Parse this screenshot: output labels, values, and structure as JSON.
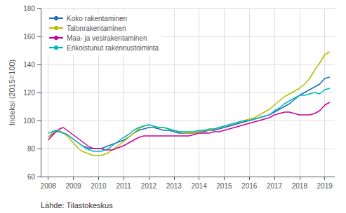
{
  "chart_data": {
    "type": "line",
    "ylabel": "Indeksi (2015=100)",
    "source": "Lähde: Tilastokeskus",
    "xlim": [
      2007.7,
      2019.4
    ],
    "xticks": [
      2008,
      2009,
      2010,
      2011,
      2012,
      2013,
      2014,
      2015,
      2016,
      2017,
      2018,
      2019
    ],
    "ylim": [
      60,
      180
    ],
    "yticks": [
      60,
      80,
      100,
      120,
      140,
      160,
      180
    ],
    "grid": true,
    "legend": "top-left",
    "x": [
      2008.0,
      2008.15,
      2008.3,
      2008.45,
      2008.6,
      2008.75,
      2008.9,
      2009.05,
      2009.2,
      2009.35,
      2009.5,
      2009.65,
      2009.8,
      2009.95,
      2010.1,
      2010.25,
      2010.4,
      2010.55,
      2010.7,
      2010.85,
      2011.0,
      2011.2,
      2011.4,
      2011.6,
      2011.8,
      2012.0,
      2012.2,
      2012.4,
      2012.6,
      2012.8,
      2013.0,
      2013.2,
      2013.4,
      2013.6,
      2013.8,
      2014.0,
      2014.2,
      2014.4,
      2014.6,
      2014.8,
      2015.0,
      2015.2,
      2015.4,
      2015.6,
      2015.8,
      2016.0,
      2016.2,
      2016.4,
      2016.6,
      2016.8,
      2017.0,
      2017.2,
      2017.4,
      2017.6,
      2017.8,
      2018.0,
      2018.2,
      2018.4,
      2018.6,
      2018.8,
      2019.0,
      2019.2
    ],
    "series": [
      {
        "name": "Koko rakentaminen",
        "color": "#1f6eb5",
        "values": [
          88,
          90,
          92,
          92,
          91,
          90,
          88,
          86,
          84,
          82,
          81,
          80,
          80,
          80,
          80,
          81,
          82,
          83,
          84,
          85,
          86,
          88,
          91,
          93,
          94,
          95,
          95,
          94,
          93,
          93,
          92,
          91,
          91,
          91,
          91,
          92,
          92,
          93,
          93,
          94,
          95,
          96,
          97,
          98,
          99,
          100,
          101,
          102,
          103,
          104,
          106,
          108,
          110,
          112,
          115,
          118,
          120,
          122,
          124,
          126,
          130,
          131
        ]
      },
      {
        "name": "Talonrakentaminen",
        "color": "#b5bd00",
        "values": [
          88,
          91,
          93,
          93,
          91,
          89,
          86,
          83,
          80,
          78,
          77,
          76,
          75,
          75,
          75,
          76,
          77,
          79,
          81,
          83,
          85,
          88,
          91,
          94,
          96,
          97,
          96,
          95,
          95,
          94,
          93,
          92,
          91,
          91,
          91,
          92,
          93,
          93,
          94,
          95,
          96,
          97,
          98,
          99,
          100,
          101,
          102,
          104,
          106,
          108,
          111,
          114,
          117,
          119,
          121,
          123,
          126,
          130,
          136,
          141,
          147,
          149
        ]
      },
      {
        "name": "Maa- ja vesirakentaminen",
        "color": "#cc0099",
        "values": [
          86,
          89,
          92,
          94,
          95,
          93,
          91,
          89,
          87,
          85,
          83,
          81,
          80,
          80,
          80,
          79,
          79,
          79,
          80,
          81,
          82,
          84,
          86,
          88,
          89,
          89,
          89,
          89,
          89,
          89,
          89,
          89,
          89,
          89,
          90,
          91,
          91,
          91,
          92,
          92,
          93,
          94,
          95,
          96,
          97,
          98,
          99,
          100,
          101,
          102,
          104,
          105,
          106,
          106,
          105,
          104,
          104,
          104,
          105,
          107,
          111,
          113
        ]
      },
      {
        "name": "Erikoistunut rakennustoiminta",
        "color": "#00b8b8",
        "values": [
          91,
          92,
          93,
          92,
          91,
          90,
          88,
          86,
          84,
          82,
          80,
          79,
          78,
          78,
          78,
          79,
          80,
          82,
          84,
          86,
          88,
          90,
          93,
          95,
          96,
          97,
          96,
          95,
          95,
          94,
          93,
          92,
          92,
          92,
          92,
          93,
          93,
          94,
          94,
          95,
          96,
          97,
          98,
          99,
          100,
          100,
          101,
          102,
          103,
          104,
          107,
          109,
          112,
          114,
          116,
          118,
          118,
          119,
          120,
          119,
          122,
          123
        ]
      }
    ]
  }
}
